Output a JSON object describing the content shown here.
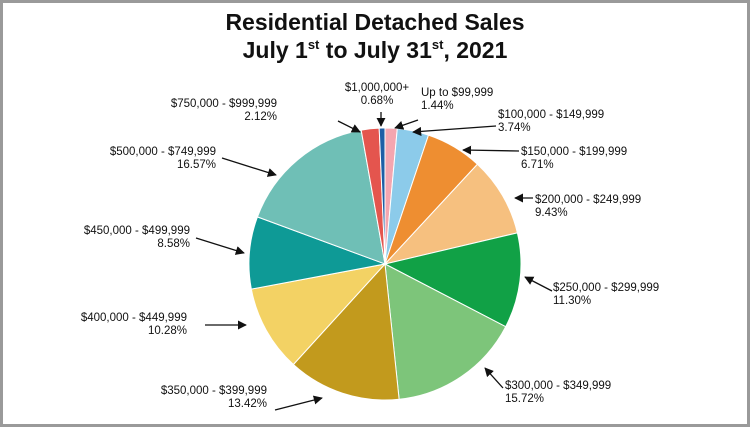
{
  "title": {
    "line1": "Residential Detached Sales",
    "line2": {
      "part1": "July 1",
      "sup1": "st",
      "part2": " to July 31",
      "sup2": "st",
      "part3": ", 2021"
    }
  },
  "chart_data": {
    "type": "pie",
    "unit": "%",
    "slices": [
      {
        "label": "Up to $99,999",
        "value": 1.44,
        "display": "1.44%",
        "color": "#f4a6b0"
      },
      {
        "label": "$100,000 - $149,999",
        "value": 3.74,
        "display": "3.74%",
        "color": "#8ccbea"
      },
      {
        "label": "$150,000 - $199,999",
        "value": 6.71,
        "display": "6.71%",
        "color": "#ee8e31"
      },
      {
        "label": "$200,000 - $249,999",
        "value": 9.43,
        "display": "9.43%",
        "color": "#f6c07f"
      },
      {
        "label": "$250,000 - $299,999",
        "value": 11.3,
        "display": "11.30%",
        "color": "#11a146"
      },
      {
        "label": "$300,000 - $349,999",
        "value": 15.72,
        "display": "15.72%",
        "color": "#7dc57a"
      },
      {
        "label": "$350,000 - $399,999",
        "value": 13.42,
        "display": "13.42%",
        "color": "#c29a1d"
      },
      {
        "label": "$400,000 - $449,999",
        "value": 10.28,
        "display": "10.28%",
        "color": "#f3d264"
      },
      {
        "label": "$450,000 - $499,999",
        "value": 8.58,
        "display": "8.58%",
        "color": "#0e9a96"
      },
      {
        "label": "$500,000 - $749,999",
        "value": 16.57,
        "display": "16.57%",
        "color": "#6fbfb6"
      },
      {
        "label": "$750,000 - $999,999",
        "value": 2.12,
        "display": "2.12%",
        "color": "#e4554e"
      },
      {
        "label": "$1,000,000+",
        "value": 0.68,
        "display": "0.68%",
        "color": "#1e5fa6"
      }
    ]
  }
}
